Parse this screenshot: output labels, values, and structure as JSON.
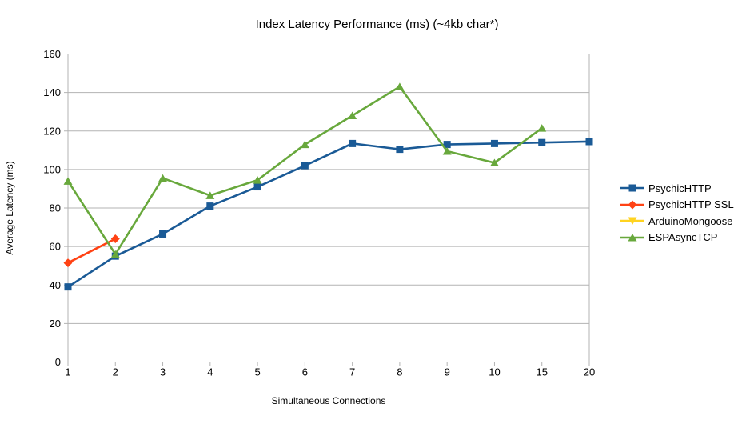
{
  "title": "Index Latency Performance (ms) (~4kb char*)",
  "colors": {
    "background": "#FFFFFF",
    "grid": "#B3B3B3",
    "axis": "#B3B3B3",
    "text": "#000000"
  },
  "chart_data": {
    "type": "line",
    "title": "Index Latency Performance (ms) (~4kb char*)",
    "xlabel": "Simultaneous Connections",
    "ylabel": "Average Latency (ms)",
    "categories": [
      "1",
      "2",
      "3",
      "4",
      "5",
      "6",
      "7",
      "8",
      "9",
      "10",
      "15",
      "20"
    ],
    "ylim": [
      0,
      160
    ],
    "yticks": [
      0,
      20,
      40,
      60,
      80,
      100,
      120,
      140,
      160
    ],
    "grid": "horizontal",
    "legend_position": "right",
    "series": [
      {
        "name": "PsychicHTTP",
        "color": "#1A5A96",
        "marker": "square",
        "values": [
          39,
          55,
          66.5,
          81,
          91,
          102,
          113.5,
          110.5,
          113,
          113.5,
          114,
          114.5
        ]
      },
      {
        "name": "PsychicHTTP SSL",
        "color": "#FF4214",
        "marker": "diamond",
        "values": [
          51.5,
          64,
          null,
          null,
          null,
          null,
          null,
          null,
          null,
          null,
          null,
          null
        ]
      },
      {
        "name": "ArduinoMongoose",
        "color": "#FFD320",
        "marker": "triangle-down",
        "values": [
          null,
          null,
          null,
          null,
          null,
          null,
          null,
          null,
          null,
          null,
          null,
          null
        ]
      },
      {
        "name": "ESPAsyncTCP",
        "color": "#68A83C",
        "marker": "triangle-up",
        "values": [
          94,
          56,
          95.5,
          86.5,
          94.5,
          113,
          128,
          143,
          109.5,
          103.5,
          121.5,
          null
        ]
      }
    ]
  }
}
